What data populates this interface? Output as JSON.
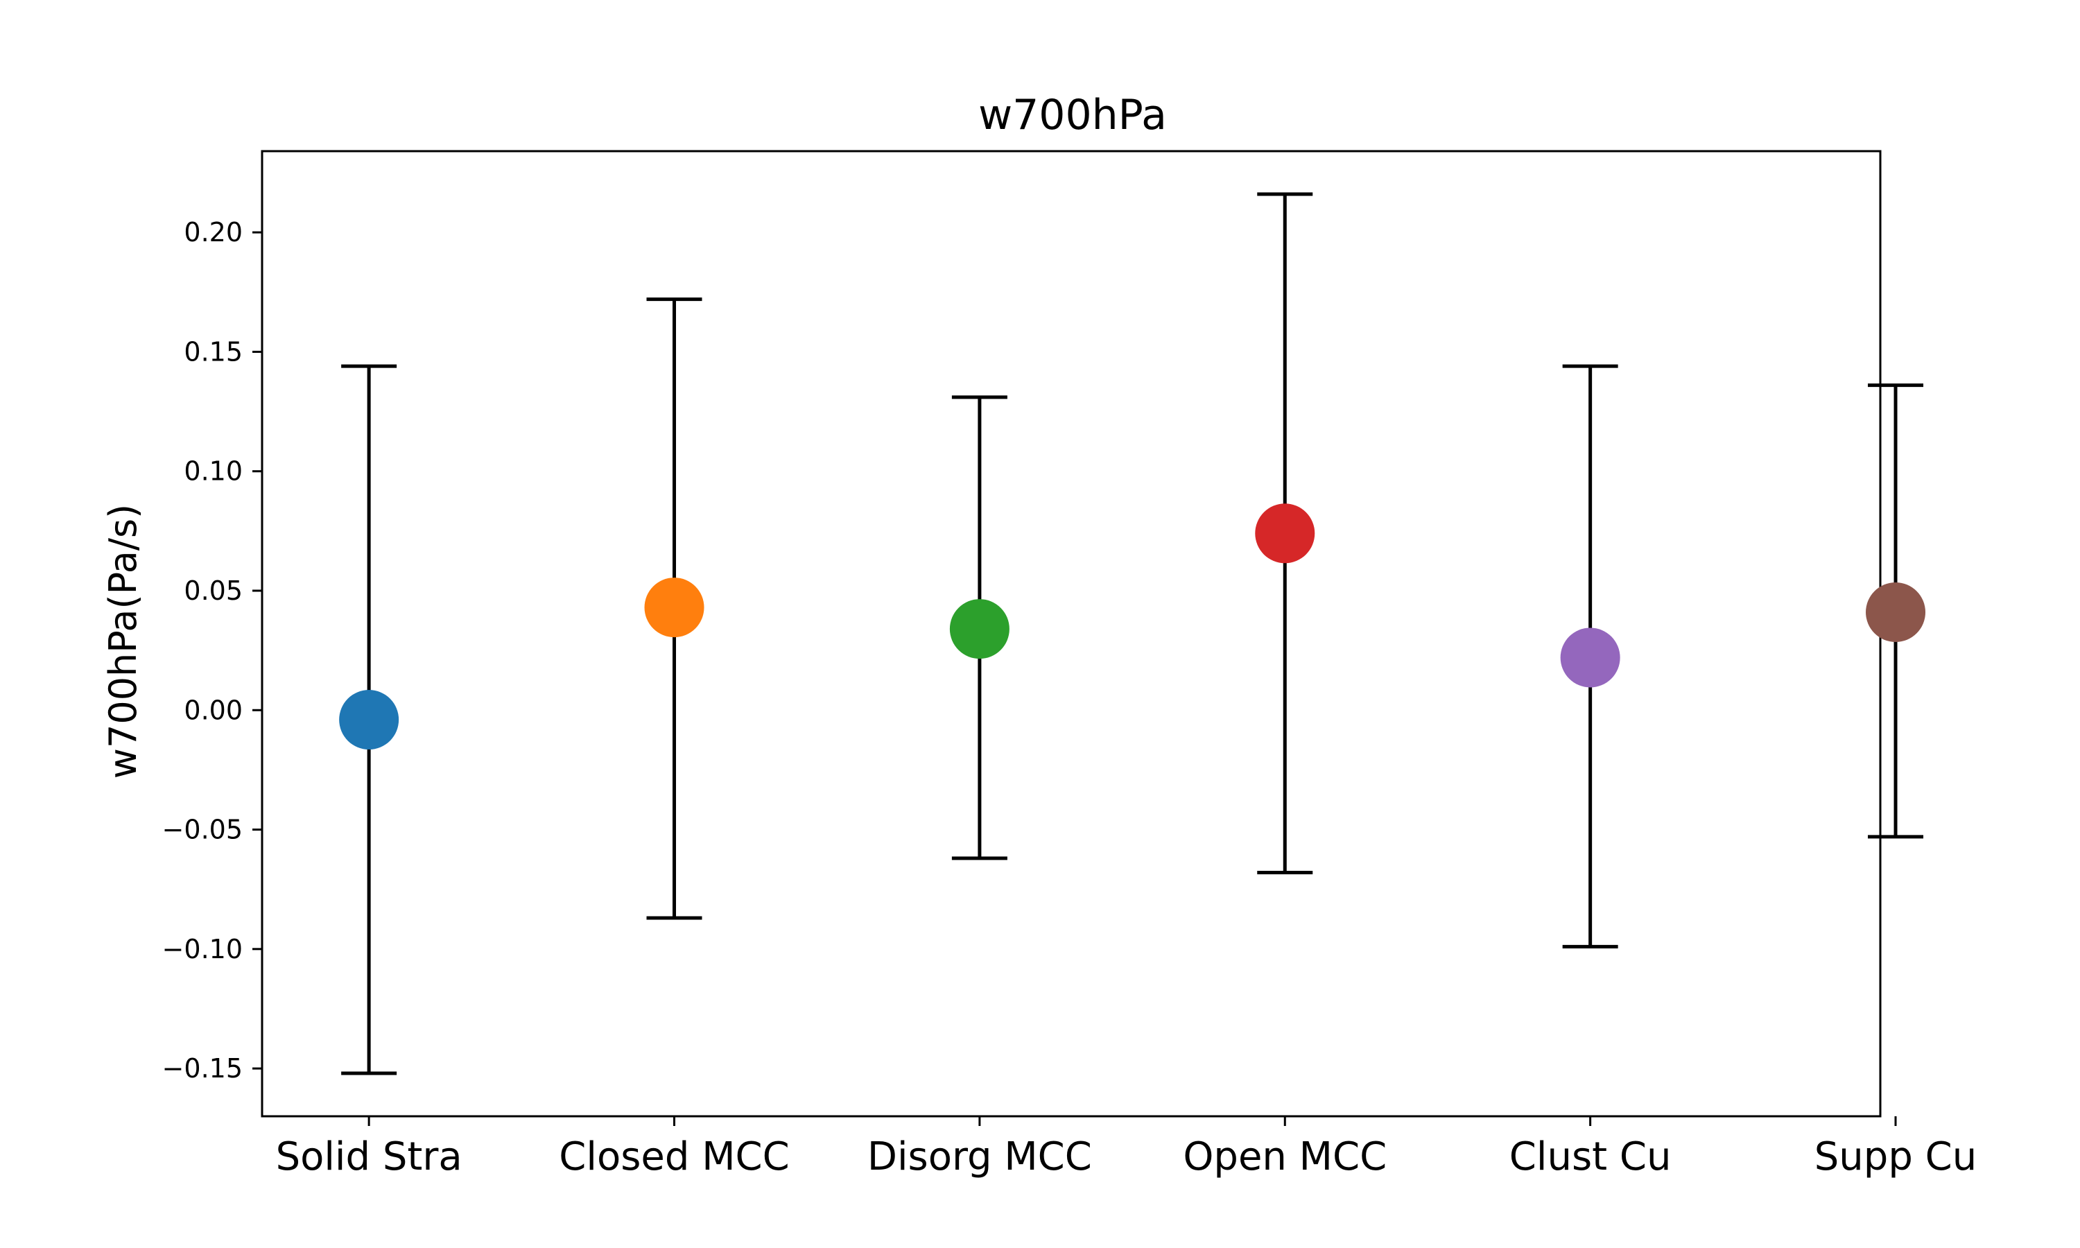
{
  "chart_data": {
    "type": "scatter",
    "title": "w700hPa",
    "xlabel": "",
    "ylabel": "w700hPa(Pa/s)",
    "ylim": [
      -0.17,
      0.234
    ],
    "yticks": [
      -0.15,
      -0.1,
      -0.05,
      0.0,
      0.05,
      0.1,
      0.15,
      0.2
    ],
    "ytick_labels": [
      "−0.15",
      "−0.10",
      "−0.05",
      "0.00",
      "0.05",
      "0.10",
      "0.15",
      "0.20"
    ],
    "categories": [
      "Solid Stra",
      "Closed MCC",
      "Disorg MCC",
      "Open MCC",
      "Clust Cu",
      "Supp Cu"
    ],
    "means": [
      -0.004,
      0.043,
      0.034,
      0.074,
      0.022,
      0.041
    ],
    "upper": [
      0.144,
      0.172,
      0.131,
      0.216,
      0.144,
      0.136
    ],
    "lower": [
      -0.152,
      -0.087,
      -0.062,
      -0.068,
      -0.099,
      -0.053
    ],
    "colors": [
      "#1f77b4",
      "#ff7f0e",
      "#2ca02c",
      "#d62728",
      "#9467bd",
      "#8c564b"
    ],
    "grid": false,
    "legend": "none"
  }
}
